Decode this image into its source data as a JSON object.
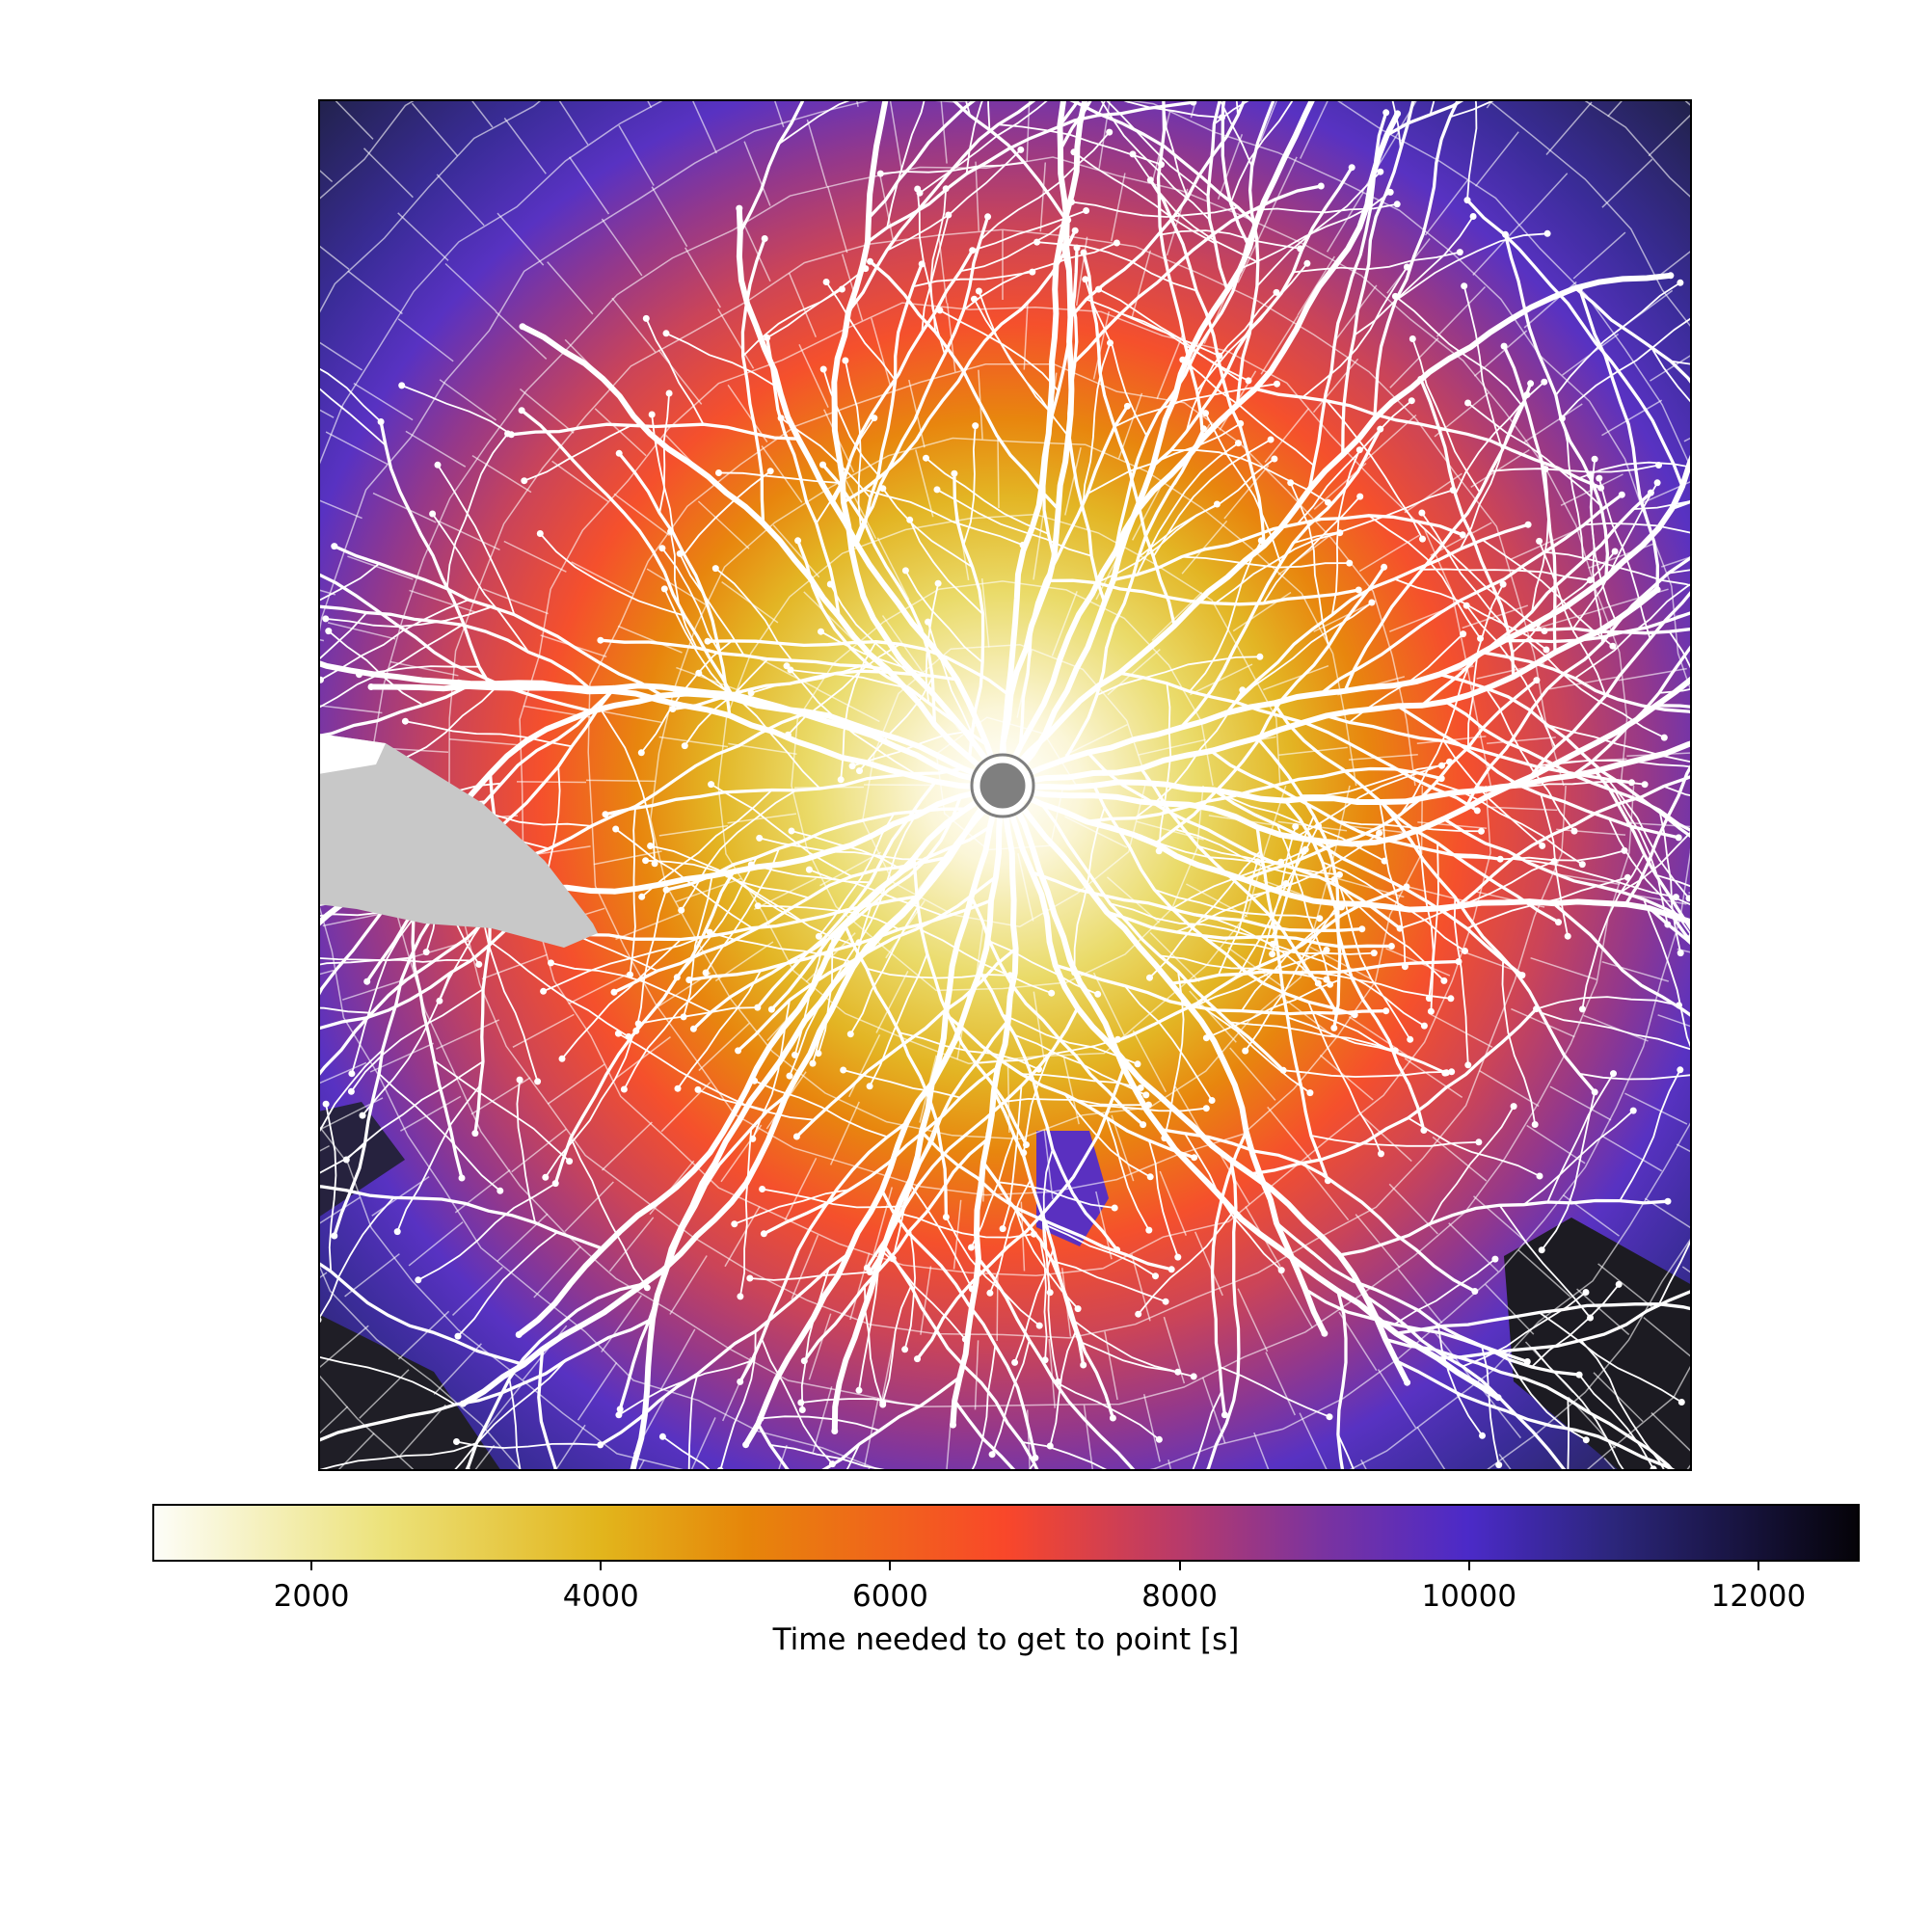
{
  "map": {
    "description_hidden": false,
    "origin_marker": "origin-point-marker",
    "center_color": "#ffffff",
    "water_color": "#c8c8c8"
  },
  "colorbar": {
    "label": "Time needed to get to point [s]",
    "range": [
      900,
      12700
    ],
    "ticks": [
      {
        "value": 2000,
        "label": "2000"
      },
      {
        "value": 4000,
        "label": "4000"
      },
      {
        "value": 6000,
        "label": "6000"
      },
      {
        "value": 8000,
        "label": "8000"
      },
      {
        "value": 10000,
        "label": "10000"
      },
      {
        "value": 12000,
        "label": "12000"
      }
    ],
    "colormap": [
      {
        "value": 900,
        "color": "#fdfdf8"
      },
      {
        "value": 2500,
        "color": "#ece27a"
      },
      {
        "value": 4000,
        "color": "#e2b51c"
      },
      {
        "value": 5000,
        "color": "#e6860a"
      },
      {
        "value": 6800,
        "color": "#f9472a"
      },
      {
        "value": 8000,
        "color": "#b83a6a"
      },
      {
        "value": 9000,
        "color": "#7a33a0"
      },
      {
        "value": 10000,
        "color": "#4b2ac8"
      },
      {
        "value": 11000,
        "color": "#2c267c"
      },
      {
        "value": 12700,
        "color": "#050308"
      }
    ]
  }
}
